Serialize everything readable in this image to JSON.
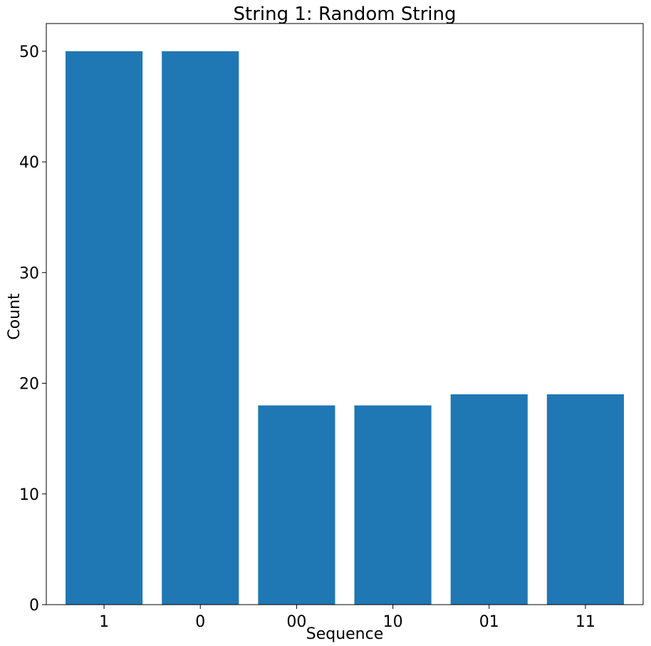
{
  "chart_data": {
    "type": "bar",
    "title": "String 1: Random String",
    "xlabel": "Sequence",
    "ylabel": "Count",
    "categories": [
      "1",
      "0",
      "00",
      "10",
      "01",
      "11"
    ],
    "values": [
      50,
      50,
      18,
      18,
      19,
      19
    ],
    "ylim": [
      0,
      52.5
    ],
    "yticks": [
      0,
      10,
      20,
      30,
      40,
      50
    ],
    "bar_color": "#1f77b4",
    "grid": false,
    "legend": "none"
  }
}
